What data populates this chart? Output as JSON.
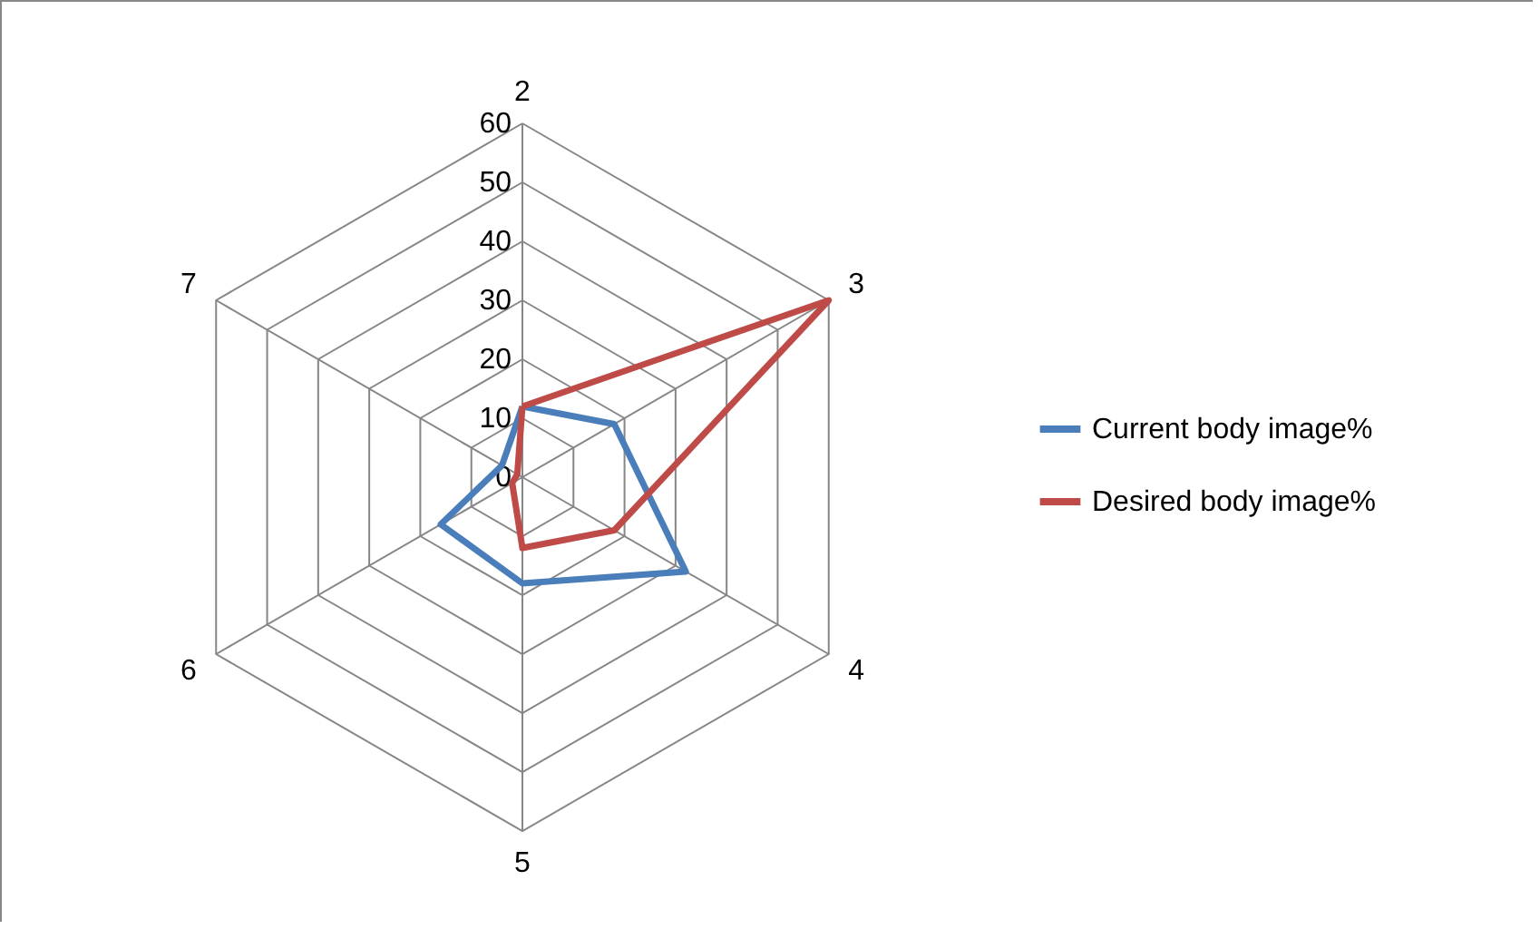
{
  "chart_data": {
    "type": "radar",
    "categories": [
      "2",
      "3",
      "4",
      "5",
      "6",
      "7"
    ],
    "series": [
      {
        "name": "Current body image%",
        "color": "#4a7ebb",
        "values": [
          12,
          18,
          32,
          18,
          16,
          4
        ]
      },
      {
        "name": "Desired body image%",
        "color": "#be4b48",
        "values": [
          12,
          60,
          18,
          12,
          2,
          1
        ]
      }
    ],
    "ylim": [
      0,
      60
    ],
    "yticks": [
      0,
      10,
      20,
      30,
      40,
      50,
      60
    ],
    "grid": true,
    "legend": "right"
  }
}
